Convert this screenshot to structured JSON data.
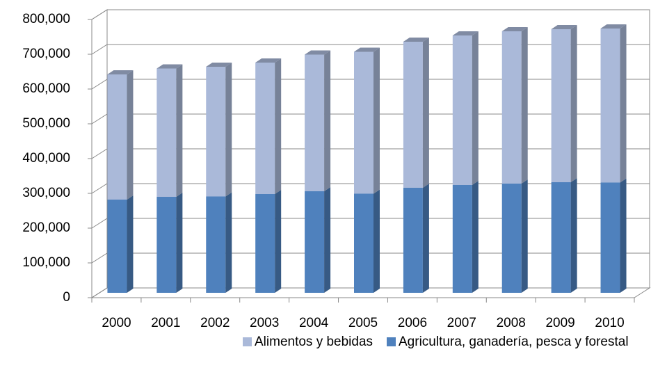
{
  "chart_data": {
    "type": "bar",
    "stacked": true,
    "three_d": true,
    "categories": [
      "2000",
      "2001",
      "2002",
      "2003",
      "2004",
      "2005",
      "2006",
      "2007",
      "2008",
      "2009",
      "2010"
    ],
    "series": [
      {
        "name": "Alimentos y bebidas",
        "color": "#aab9d9",
        "values": [
          360000,
          369000,
          373000,
          378000,
          393000,
          408000,
          420000,
          430000,
          438000,
          440000,
          443000
        ]
      },
      {
        "name": "Agricultura, ganadería, pesca y forestal",
        "color": "#4f81bd",
        "values": [
          268000,
          276000,
          277000,
          284000,
          292000,
          285000,
          302000,
          310000,
          314000,
          318000,
          317000
        ]
      }
    ],
    "ylim": [
      0,
      800000
    ],
    "yticks": [
      0,
      {
        "value": 100000,
        "label": "100,000"
      },
      {
        "value": 200000,
        "label": "200,000"
      },
      {
        "value": 300000,
        "label": "300,000"
      },
      {
        "value": 400000,
        "label": "400,000"
      },
      {
        "value": 500000,
        "label": "500,000"
      },
      {
        "value": 600000,
        "label": "600,000"
      },
      {
        "value": 700000,
        "label": "700,000"
      },
      {
        "value": 800000,
        "label": "800,000"
      }
    ],
    "grid": true,
    "legend": "bottom"
  }
}
